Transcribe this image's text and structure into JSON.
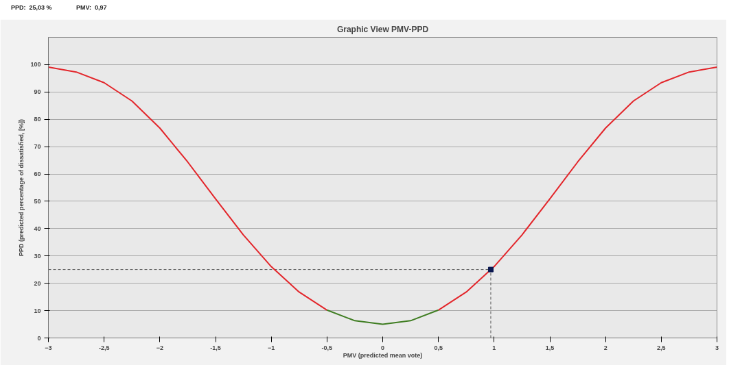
{
  "chart_data": {
    "type": "line",
    "title": "Graphic View PMV-PPD",
    "xlabel": "PMV (predicted mean vote)",
    "ylabel": "PPD (predicted percentage of dissatisfied, [%])",
    "annotations": [
      "PPD:  25,03 %",
      "PMV:  0,97"
    ],
    "series": [
      {
        "color": "#e3262b",
        "x": [
          -3,
          -2.75,
          -2.5,
          -2.25,
          -2,
          -1.75,
          -1.5,
          -1.25,
          -1,
          -0.75,
          -0.5
        ],
        "values": [
          99.1,
          97.3,
          93.4,
          86.7,
          76.8,
          64.4,
          50.9,
          37.7,
          26.1,
          16.8,
          10.2
        ]
      },
      {
        "color": "#3f7d22",
        "x": [
          -0.5,
          -0.25,
          0,
          0.25,
          0.5
        ],
        "values": [
          10.2,
          6.3,
          5,
          6.3,
          10.2
        ]
      },
      {
        "color": "#e3262b",
        "x": [
          0.5,
          0.75,
          1,
          1.25,
          1.5,
          1.75,
          2,
          2.25,
          2.5,
          2.75,
          3
        ],
        "values": [
          10.2,
          16.8,
          26.1,
          37.7,
          50.9,
          64.4,
          76.8,
          86.7,
          93.4,
          97.3,
          99.1
        ]
      },
      {
        "type": "scatter",
        "color": "#0b1850",
        "marker": "square",
        "x": [
          0.97
        ],
        "values": [
          25.03
        ]
      }
    ],
    "ref_lines": [
      {
        "axis": "x",
        "value": 0.97,
        "color": "#555555",
        "line_style": "dashed"
      },
      {
        "axis": "y",
        "value": 25.03,
        "color": "#555555",
        "line_style": "dashed"
      }
    ],
    "xlim": [
      -3,
      3
    ],
    "ylim": [
      0,
      110
    ],
    "xticks": [
      -3,
      {
        "value": -2.5,
        "label": "-2,5"
      },
      -2,
      {
        "value": -1.5,
        "label": "-1,5"
      },
      -1,
      {
        "value": -0.5,
        "label": "-0,5"
      },
      0,
      {
        "value": 0.5,
        "label": "0,5"
      },
      1,
      {
        "value": 1.5,
        "label": "1,5"
      },
      2,
      {
        "value": 2.5,
        "label": "2,5"
      },
      3
    ],
    "yticks": [
      0,
      10,
      20,
      30,
      40,
      50,
      60,
      70,
      80,
      90,
      100
    ],
    "grid": "y"
  }
}
